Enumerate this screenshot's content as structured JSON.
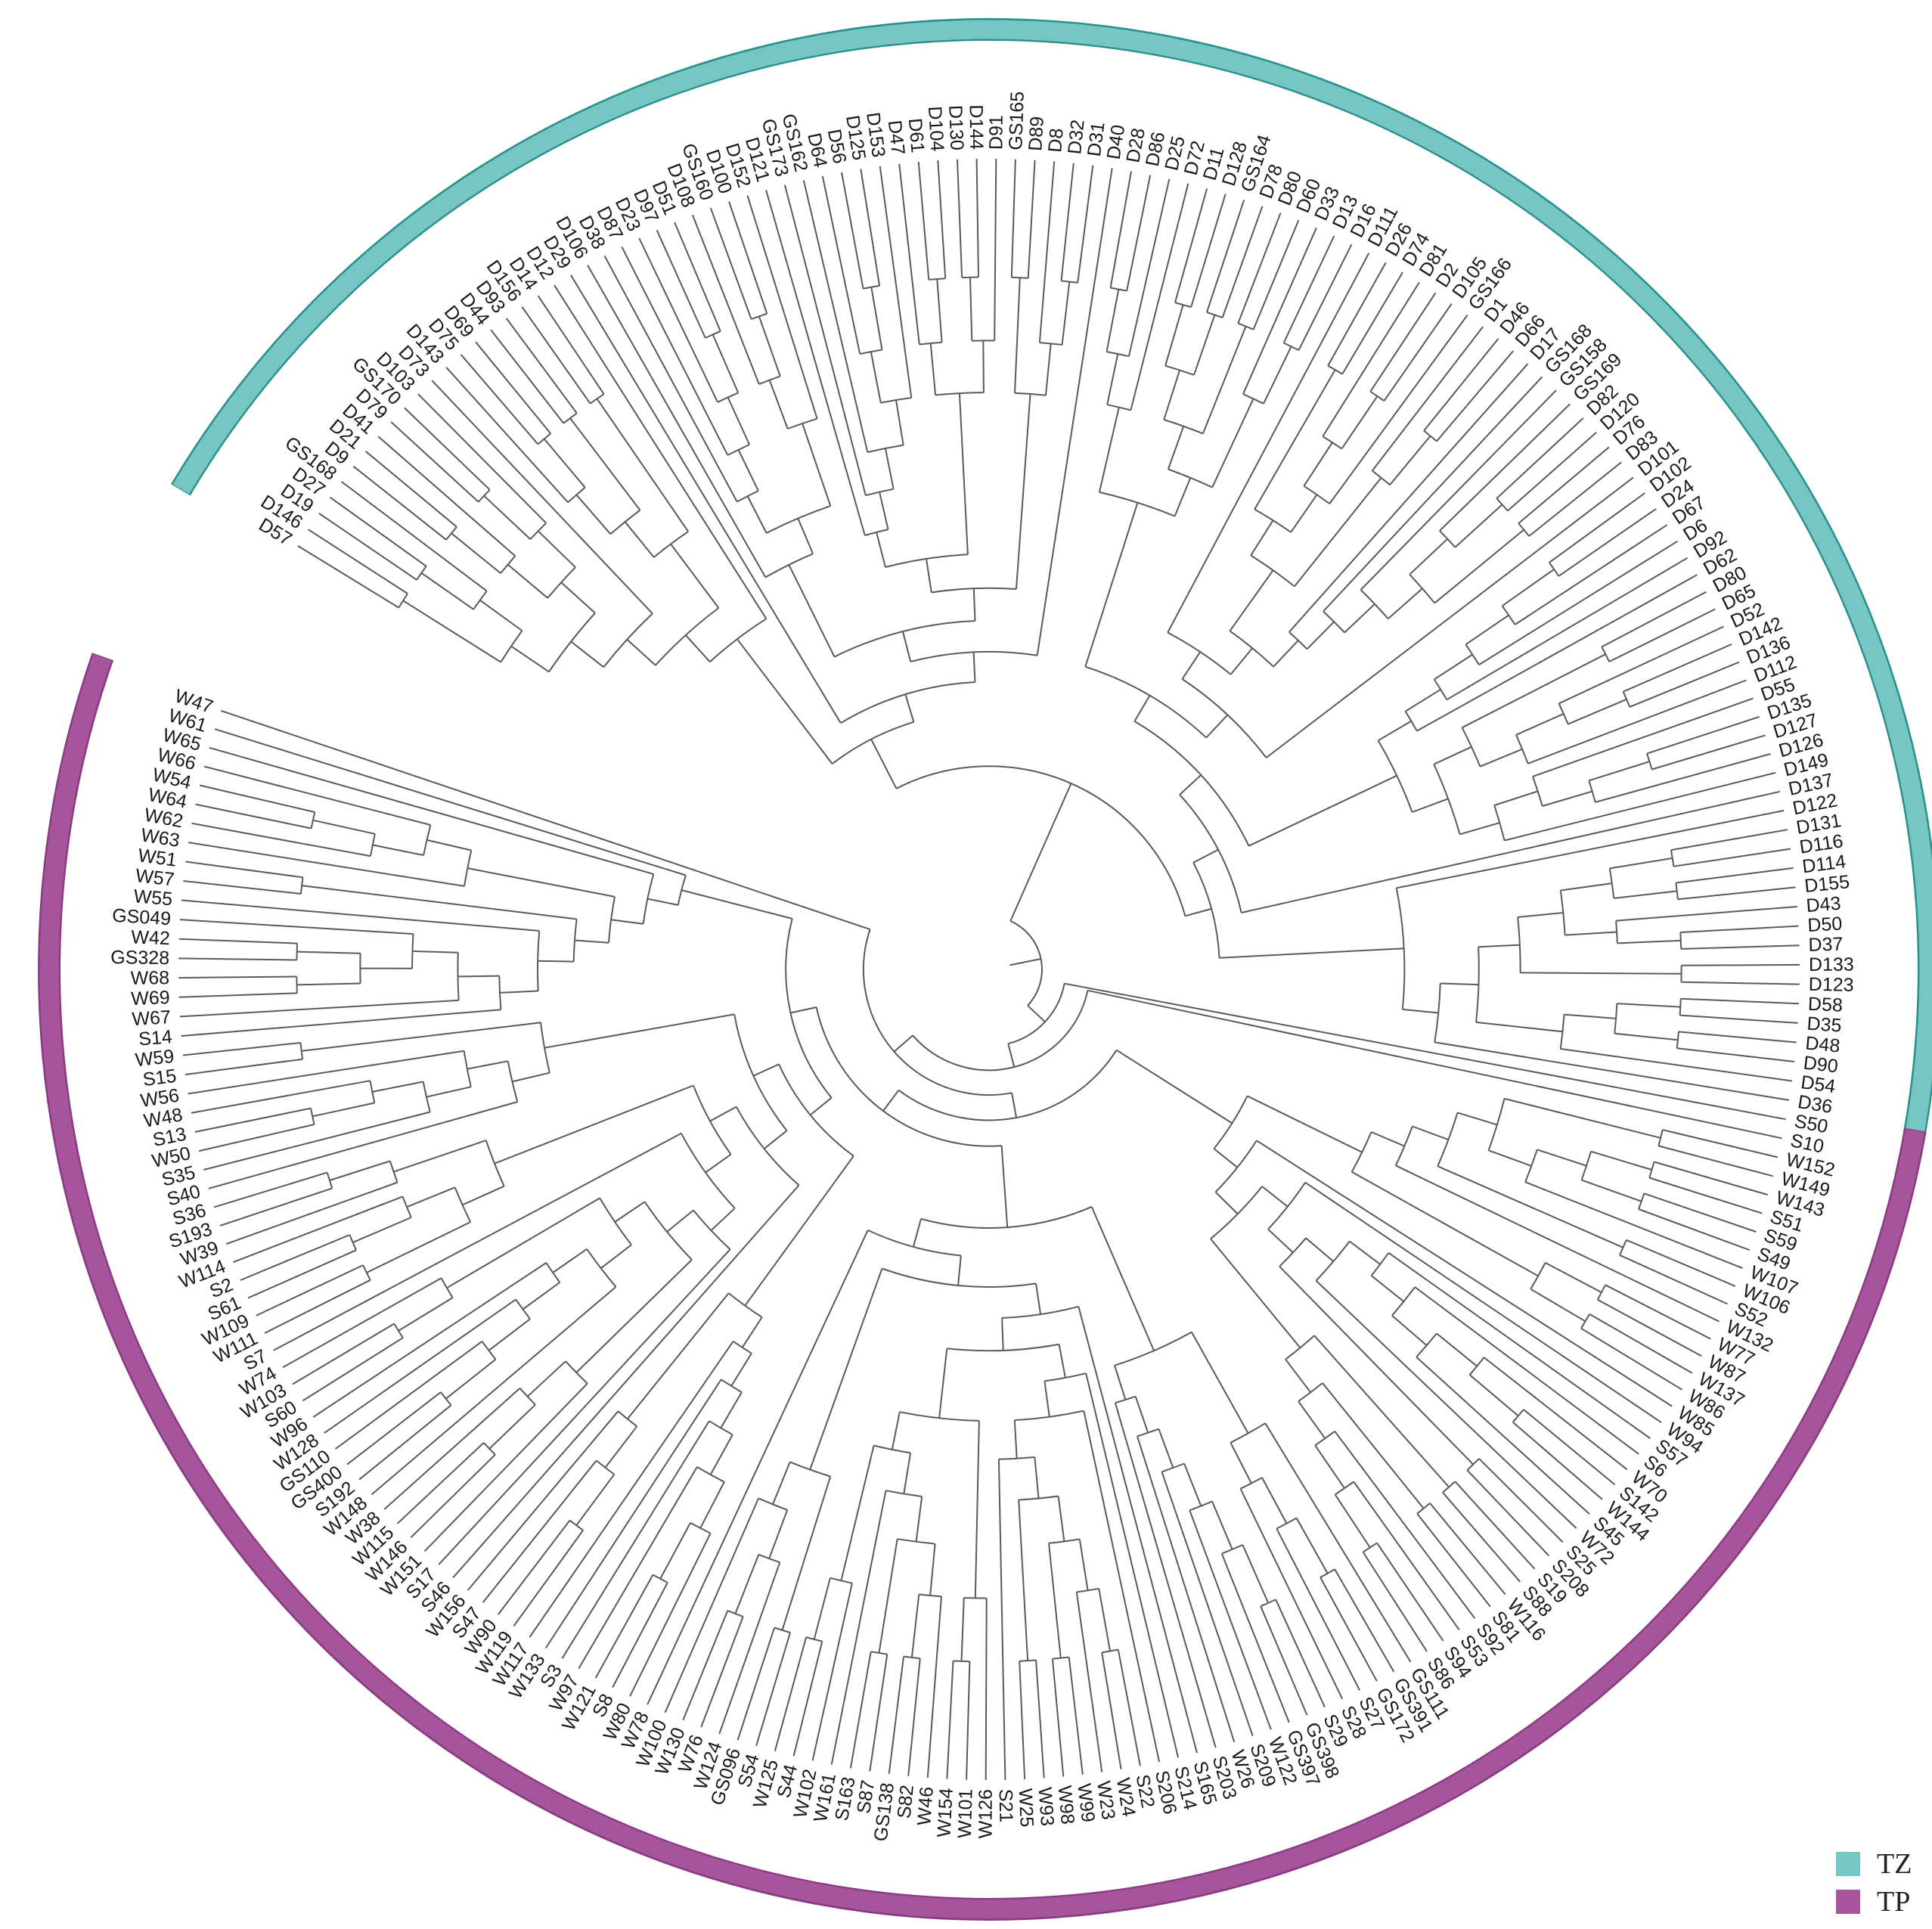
{
  "groups": [
    {
      "name": "TZ",
      "color": "#76c6c3",
      "edge_color": "#2a908c",
      "leaves": [
        "D57",
        "D146",
        "D19",
        "D27",
        "GS168",
        "D9",
        "D21",
        "D41",
        "D79",
        "GS170",
        "D103",
        "D73",
        "D143",
        "D75",
        "D69",
        "D44",
        "D93",
        "D156",
        "D14",
        "D12",
        "D29",
        "D106",
        "D38",
        "D87",
        "D23",
        "D97",
        "D51",
        "D108",
        "GS160",
        "D100",
        "D152",
        "D121",
        "GS173",
        "GS162",
        "D64",
        "D56",
        "D125",
        "D153",
        "D47",
        "D61",
        "D104",
        "D130",
        "D144",
        "D91",
        "GS165",
        "D89",
        "D8",
        "D32",
        "D31",
        "D40",
        "D28",
        "D86",
        "D25",
        "D72",
        "D11",
        "D128",
        "GS164",
        "D78",
        "D80",
        "D60",
        "D33",
        "D13",
        "D16",
        "D111",
        "D26",
        "D74",
        "D81",
        "D2",
        "D105",
        "GS166",
        "D1",
        "D46",
        "D66",
        "D17",
        "GS168",
        "GS158",
        "GS169",
        "D82",
        "D120",
        "D76",
        "D83",
        "D101",
        "D102",
        "D24",
        "D67",
        "D6",
        "D92",
        "D62",
        "D80",
        "D65",
        "D52",
        "D142",
        "D136",
        "D112",
        "D55",
        "D135",
        "D127",
        "D126",
        "D149",
        "D137",
        "D122",
        "D131",
        "D116",
        "D114",
        "D155",
        "D43",
        "D50",
        "D37",
        "D133",
        "D123",
        "D58",
        "D35",
        "D48",
        "D90",
        "D54",
        "D36"
      ]
    },
    {
      "name": "TP",
      "color": "#a6549c",
      "edge_color": "#8a3a82",
      "leaves": [
        "S50",
        "S10",
        "W152",
        "W149",
        "W143",
        "S51",
        "S59",
        "S49",
        "W107",
        "W106",
        "S52",
        "W132",
        "W77",
        "W87",
        "W137",
        "W86",
        "W85",
        "W94",
        "S57",
        "S6",
        "W70",
        "S142",
        "W144",
        "S45",
        "W72",
        "S25",
        "S208",
        "S19",
        "S88",
        "W116",
        "S81",
        "S92",
        "S53",
        "S94",
        "S86",
        "GS111",
        "GS391",
        "GS172",
        "S27",
        "S28",
        "S29",
        "GS398",
        "GS397",
        "W122",
        "S209",
        "W26",
        "S203",
        "S165",
        "S214",
        "S206",
        "S22",
        "W24",
        "W23",
        "W99",
        "W98",
        "W93",
        "W25",
        "S21",
        "W126",
        "W101",
        "W154",
        "W46",
        "S82",
        "GS138",
        "S87",
        "S163",
        "W161",
        "W102",
        "S44",
        "W125",
        "S54",
        "GS096",
        "W124",
        "W76",
        "W130",
        "W100",
        "W78",
        "W80",
        "S8",
        "W121",
        "W97",
        "S3",
        "W133",
        "W117",
        "W119",
        "W90",
        "S47",
        "W156",
        "S46",
        "S17",
        "W151",
        "W146",
        "W115",
        "W38",
        "W148",
        "S192",
        "GS400",
        "GS110",
        "W128",
        "W96",
        "S60",
        "W103",
        "W74",
        "S7",
        "W111",
        "W109",
        "S61",
        "S2",
        "W114",
        "W39",
        "S193",
        "S36",
        "S40",
        "S35",
        "W50",
        "S13",
        "W48",
        "W56",
        "S15",
        "W59",
        "S14",
        "W67",
        "W69",
        "W68",
        "GS328",
        "W42",
        "GS049",
        "W55",
        "W57",
        "W51",
        "W63",
        "W62",
        "W64",
        "W54",
        "W66",
        "W65",
        "W61",
        "W47"
      ]
    }
  ],
  "legend": [
    {
      "label": "TZ",
      "color": "#76c6c3"
    },
    {
      "label": "TP",
      "color": "#a6549c"
    }
  ],
  "branch_color": "#5a5a5a"
}
